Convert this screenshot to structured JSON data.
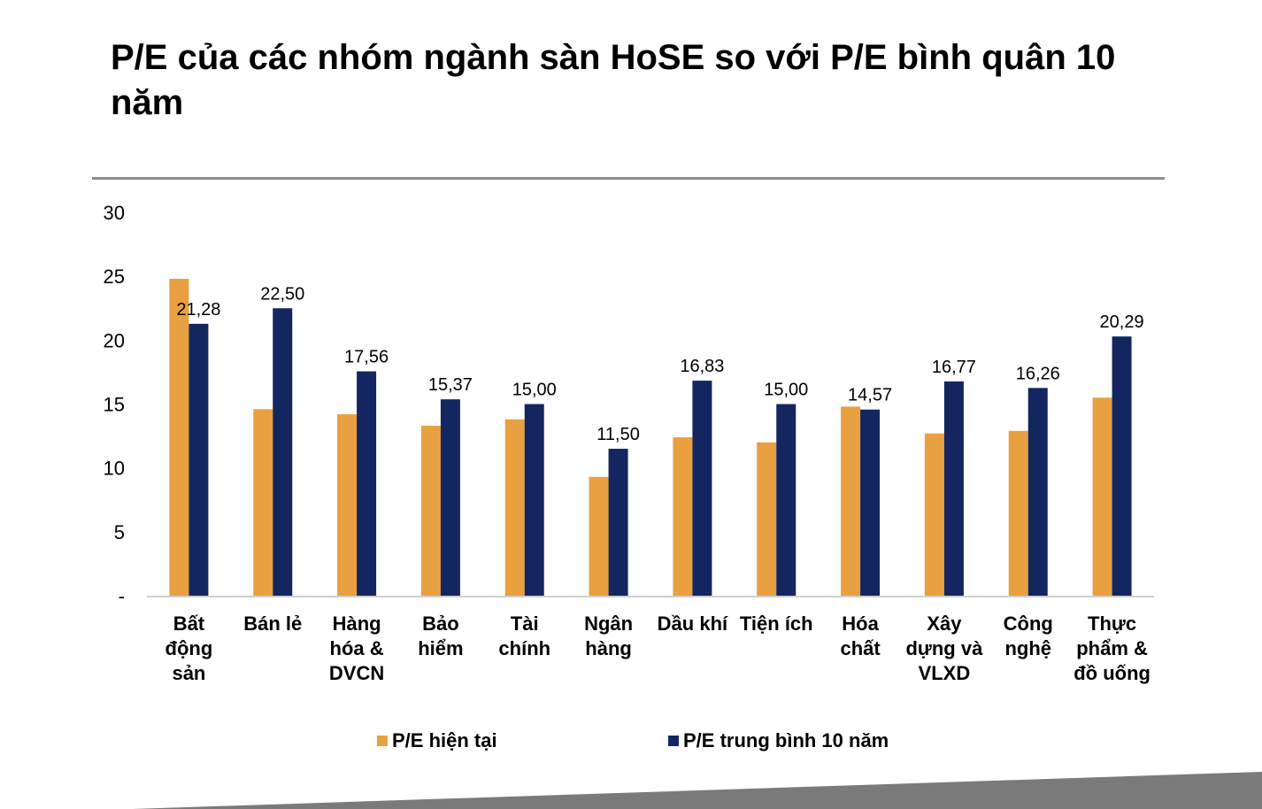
{
  "title": "P/E của các nhóm ngành sàn HoSE so với P/E bình quân 10 năm",
  "colors": {
    "current": "#E9A040",
    "avg10": "#132660",
    "axis": "#d0d0d0",
    "rule": "#8c8c8c",
    "footer": "#7a7a7a"
  },
  "chart_data": {
    "type": "bar",
    "title": "P/E của các nhóm ngành sàn HoSE so với P/E bình quân 10 năm",
    "categories": [
      [
        "Bất",
        "động",
        "sản"
      ],
      [
        "Bán lẻ"
      ],
      [
        "Hàng",
        "hóa &",
        "DVCN"
      ],
      [
        "Bảo",
        "hiểm"
      ],
      [
        "Tài",
        "chính"
      ],
      [
        "Ngân",
        "hàng"
      ],
      [
        "Dầu khí"
      ],
      [
        "Tiện ích"
      ],
      [
        "Hóa",
        "chất"
      ],
      [
        "Xây",
        "dựng và",
        "VLXD"
      ],
      [
        "Công",
        "nghệ"
      ],
      [
        "Thực",
        "phẩm &",
        "đồ uống"
      ]
    ],
    "series": [
      {
        "name": "P/E hiện tại",
        "values": [
          24.8,
          14.6,
          14.2,
          13.3,
          13.8,
          9.3,
          12.4,
          12.0,
          14.8,
          12.7,
          12.9,
          15.5
        ]
      },
      {
        "name": "P/E trung bình 10 năm",
        "values": [
          21.28,
          22.5,
          17.56,
          15.37,
          15.0,
          11.5,
          16.83,
          15.0,
          14.57,
          16.77,
          16.26,
          20.29
        ],
        "labels": [
          "21,28",
          "22,50",
          "17,56",
          "15,37",
          "15,00",
          "11,50",
          "16,83",
          "15,00",
          "14,57",
          "16,77",
          "16,26",
          "20,29"
        ]
      }
    ],
    "yticks": [
      "-",
      "5",
      "10",
      "15",
      "20",
      "25",
      "30"
    ],
    "ylim": [
      0,
      30
    ],
    "legend_position": "bottom",
    "grid": false
  },
  "legend": [
    {
      "label": "P/E hiện tại"
    },
    {
      "label": "P/E trung bình 10 năm"
    }
  ]
}
